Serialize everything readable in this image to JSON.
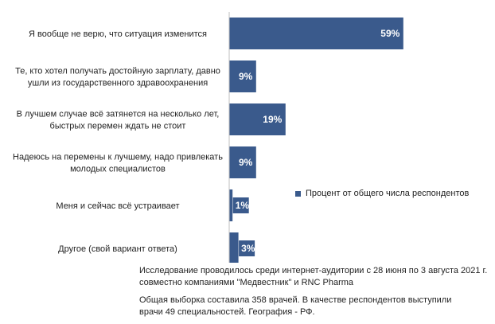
{
  "chart_data": {
    "type": "bar",
    "orientation": "horizontal",
    "categories": [
      [
        "Я вообще не верю, что ситуация изменится"
      ],
      [
        "Те, кто хотел получать достойную зарплату, давно",
        "ушли из государственного здравоохранения"
      ],
      [
        "В лучшем случае всё затянется на несколько лет,",
        "быстрых перемен ждать не стоит"
      ],
      [
        "Надеюсь на перемены к лучшему, надо привлекать",
        "молодых специалистов"
      ],
      [
        "Меня и сейчас всё устраивает"
      ],
      [
        "Другое (свой вариант ответа)"
      ]
    ],
    "series": [
      {
        "name": "Процент от общего числа респондентов",
        "values": [
          59,
          9,
          19,
          9,
          1,
          3
        ],
        "labels": [
          "59%",
          "9%",
          "19%",
          "9%",
          "1%",
          "3%"
        ]
      }
    ],
    "xlim": [
      0,
      100
    ],
    "grid": false,
    "legend_position": "right",
    "bar_color": "#3a5a8c",
    "axis_color": "#bfbfbf"
  },
  "notes": {
    "line1": "Исследование проводилось среди интернет-аудитории с 28 июня по 3 августа 2021 г.",
    "line2": "совместно компаниями \"Медвестник\" и RNC Pharma",
    "line3": "Общая выборка составила 358 врачей. В качестве респондентов выступили",
    "line4": "врачи 49 специальностей. География - РФ."
  }
}
